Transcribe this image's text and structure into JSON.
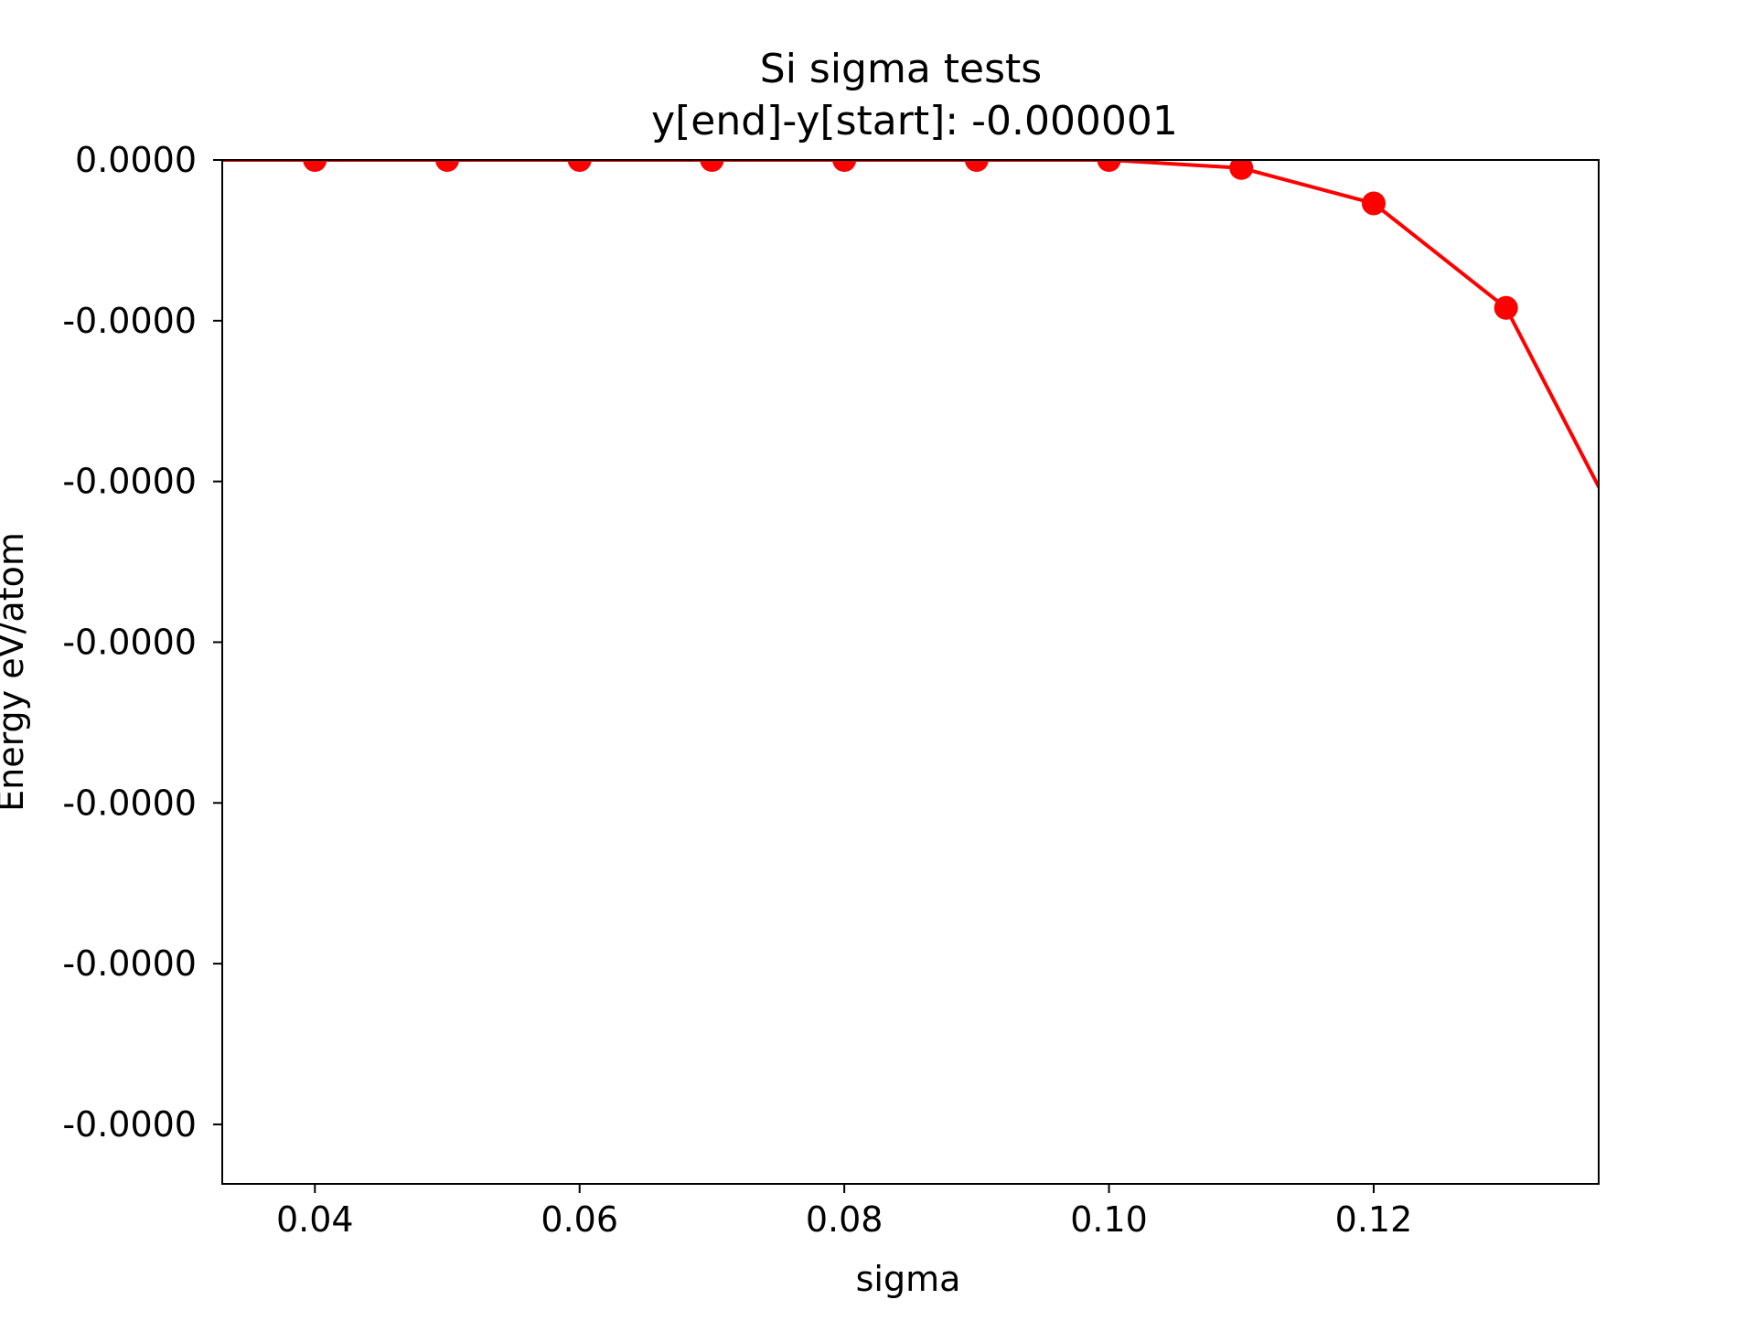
{
  "chart_data": {
    "type": "line",
    "title": "Si sigma tests",
    "subtitle": "y[end]-y[start]:  -0.000001",
    "xlabel": "sigma",
    "ylabel": "Energy eV/atom",
    "xlim": [
      0.033,
      0.137
    ],
    "ylim": [
      -6.37e-07,
      0.0
    ],
    "x_ticks": [
      0.04,
      0.06,
      0.08,
      0.1,
      0.12
    ],
    "x_tick_labels": [
      "0.04",
      "0.06",
      "0.08",
      "0.10",
      "0.12"
    ],
    "y_ticks": [
      0.0,
      -1e-07,
      -2e-07,
      -3e-07,
      -4e-07,
      -5e-07,
      -6e-07
    ],
    "y_tick_labels": [
      "0.0000",
      "-0.0000",
      "-0.0000",
      "-0.0000",
      "-0.0000",
      "-0.0000",
      "-0.0000"
    ],
    "grid": false,
    "series": [
      {
        "color": "#ff0000",
        "x": [
          0.03,
          0.04,
          0.05,
          0.06,
          0.07,
          0.08,
          0.09,
          0.1,
          0.11,
          0.12,
          0.13,
          0.14
        ],
        "y": [
          0.0,
          0.0,
          0.0,
          0.0,
          0.0,
          0.0,
          0.0,
          0.0,
          -5e-09,
          -2.7e-08,
          -9.2e-08,
          -2.51e-07
        ]
      }
    ]
  }
}
